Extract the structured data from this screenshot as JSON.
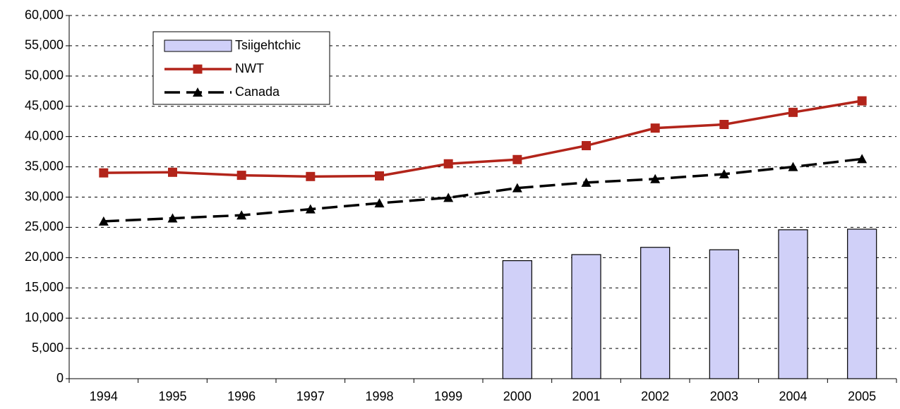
{
  "chart_data": {
    "type": "combo",
    "categories": [
      "1994",
      "1995",
      "1996",
      "1997",
      "1998",
      "1999",
      "2000",
      "2001",
      "2002",
      "2003",
      "2004",
      "2005"
    ],
    "series": [
      {
        "name": "Tsiigehtchic",
        "type": "bar",
        "color": "#d0d0f8",
        "values": [
          null,
          null,
          null,
          null,
          null,
          null,
          19500,
          20500,
          21700,
          21300,
          24600,
          24700
        ]
      },
      {
        "name": "NWT",
        "type": "line",
        "color": "#b2241a",
        "marker": "square",
        "values": [
          34000,
          34100,
          33600,
          33400,
          33500,
          35500,
          36200,
          38500,
          41400,
          42000,
          44000,
          45900
        ]
      },
      {
        "name": "Canada",
        "type": "line",
        "color": "#000000",
        "marker": "triangle",
        "dashed": true,
        "values": [
          26000,
          26500,
          27000,
          28000,
          29000,
          29900,
          31500,
          32400,
          33000,
          33800,
          35000,
          36300
        ]
      }
    ],
    "ylim": [
      0,
      60000
    ],
    "yticks": [
      0,
      {
        "value": 5000,
        "label": "5,000"
      },
      {
        "value": 10000,
        "label": "10,000"
      },
      {
        "value": 15000,
        "label": "15,000"
      },
      {
        "value": 20000,
        "label": "20,000"
      },
      {
        "value": 25000,
        "label": "25,000"
      },
      {
        "value": 30000,
        "label": "30,000"
      },
      {
        "value": 35000,
        "label": "35,000"
      },
      {
        "value": 40000,
        "label": "40,000"
      },
      {
        "value": 45000,
        "label": "45,000"
      },
      {
        "value": 50000,
        "label": "50,000"
      },
      {
        "value": 55000,
        "label": "55,000"
      },
      {
        "value": 60000,
        "label": "60,000"
      }
    ],
    "grid": true
  }
}
